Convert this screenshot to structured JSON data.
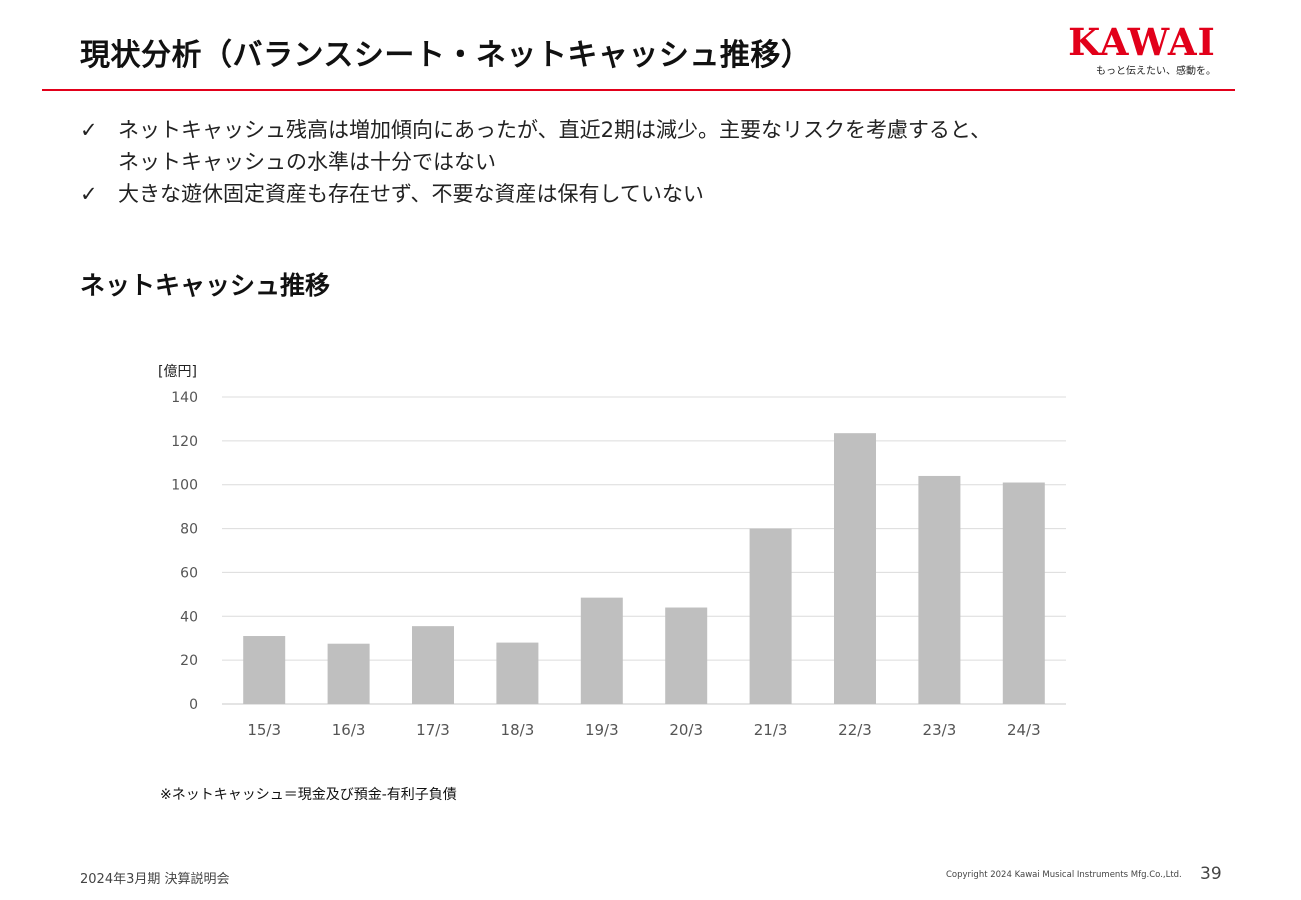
{
  "header": {
    "title": "現状分析（バランスシート・ネットキャッシュ推移）",
    "logo_text": "KAWAI",
    "logo_tagline": "もっと伝えたい、感動を。",
    "accent_color": "#e2001a"
  },
  "bullets": [
    {
      "mark": "✓",
      "text": "ネットキャッシュ残高は増加傾向にあったが、直近2期は減少。主要なリスクを考慮すると、\nネットキャッシュの水準は十分ではない"
    },
    {
      "mark": "✓",
      "text": "大きな遊休固定資産も存在せず、不要な資産は保有していない"
    }
  ],
  "section_title": "ネットキャッシュ推移",
  "chart_data": {
    "type": "bar",
    "unit_label": "[億円]",
    "categories": [
      "15/3",
      "16/3",
      "17/3",
      "18/3",
      "19/3",
      "20/3",
      "21/3",
      "22/3",
      "23/3",
      "24/3"
    ],
    "values": [
      31,
      27.5,
      35.5,
      28,
      48.5,
      44,
      80,
      123.5,
      104,
      101
    ],
    "ylim": [
      0,
      140
    ],
    "yticks": [
      0,
      20,
      40,
      60,
      80,
      100,
      120,
      140
    ],
    "bar_color": "#bfbfbf",
    "grid": true
  },
  "footnote": "※ネットキャッシュ＝現金及び預金-有利子負債",
  "footer": {
    "left": "2024年3月期 決算説明会",
    "copyright": "Copyright 2024 Kawai Musical Instruments Mfg.Co.,Ltd.",
    "page_number": "39"
  }
}
